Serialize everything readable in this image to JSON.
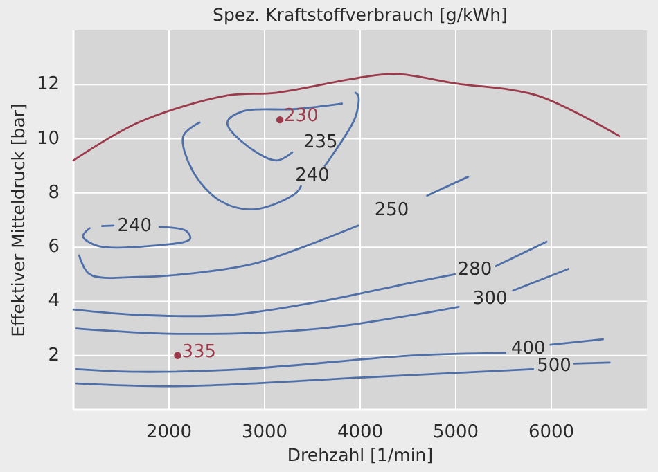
{
  "chart_data": {
    "type": "line",
    "title": "Spez. Kraftstoffverbrauch [g/kWh]",
    "xlabel": "Drehzahl [1/min]",
    "ylabel": "Effektiver Mitteldruck [bar]",
    "xlim": [
      1000,
      7000
    ],
    "xticks": [
      2000,
      3000,
      4000,
      5000,
      6000
    ],
    "ylim": [
      0,
      14
    ],
    "yticks": [
      2,
      4,
      6,
      8,
      10,
      12
    ],
    "grid": true,
    "series": [
      {
        "color": "#9b3a4a",
        "x": [
          1000,
          1680,
          2610,
          3120,
          3980,
          4370,
          4990,
          5850,
          6710
        ],
        "values": [
          9.2,
          10.6,
          11.6,
          11.7,
          12.25,
          12.4,
          12.05,
          11.6,
          10.1
        ]
      },
      {
        "name": "235",
        "color": "#4f6fa8",
        "x": [
          3810,
          3330,
          2760,
          2610,
          2760,
          3120,
          3290
        ],
        "values": [
          11.3,
          11.1,
          11.0,
          10.6,
          9.9,
          9.2,
          9.5
        ]
      },
      {
        "name": "240",
        "color": "#4f6fa8",
        "x": [
          3950,
          3980,
          3950,
          3690,
          3630,
          3500,
          3380,
          3330,
          2900,
          2540,
          2250,
          2150,
          2320,
          2000,
          1500,
          1300,
          1420,
          1640,
          1900,
          2180,
          2220,
          1820,
          1250,
          1100,
          1170
        ],
        "values": [
          11.7,
          11.6,
          10.8,
          9.3,
          9.0,
          null,
          8.25,
          8.0,
          7.4,
          7.7,
          8.8,
          10.1,
          10.6,
          null,
          null,
          6.78,
          6.8,
          null,
          6.75,
          6.6,
          6.3,
          6.05,
          6.05,
          6.4,
          6.7
        ]
      },
      {
        "name": "250",
        "color": "#4f6fa8",
        "x": [
          1060,
          1170,
          1680,
          2400,
          2900,
          3400,
          3980,
          4330,
          4700,
          5130
        ],
        "values": [
          5.7,
          5.0,
          4.9,
          5.1,
          5.4,
          6.0,
          6.8,
          null,
          7.9,
          8.6
        ]
      },
      {
        "name": "280",
        "color": "#4f6fa8",
        "x": [
          1000,
          1680,
          2640,
          3590,
          4550,
          4990,
          5200,
          5420,
          5950
        ],
        "values": [
          3.7,
          3.5,
          3.5,
          4.0,
          4.7,
          5.0,
          null,
          5.3,
          6.2
        ]
      },
      {
        "name": "300",
        "color": "#4f6fa8",
        "x": [
          1030,
          2150,
          3590,
          5030,
          5360,
          5600,
          6180
        ],
        "values": [
          3.0,
          2.8,
          3.0,
          3.8,
          null,
          4.4,
          5.2
        ]
      },
      {
        "name": "400",
        "color": "#4f6fa8",
        "x": [
          1030,
          1680,
          2780,
          4550,
          5520,
          5760,
          5990,
          6540
        ],
        "values": [
          1.5,
          1.4,
          1.5,
          2.0,
          2.1,
          null,
          2.4,
          2.6
        ]
      },
      {
        "name": "500",
        "color": "#4f6fa8",
        "x": [
          1030,
          2150,
          4080,
          5810,
          6030,
          6240,
          6610
        ],
        "values": [
          0.97,
          0.87,
          1.2,
          1.5,
          null,
          1.7,
          1.74
        ]
      },
      {
        "type": "scatter",
        "name": "230",
        "color": "#9b3a4a",
        "marker": "circle",
        "x": [
          3160
        ],
        "values": [
          10.7
        ]
      },
      {
        "type": "scatter",
        "name": "335",
        "color": "#9b3a4a",
        "marker": "circle",
        "x": [
          2090
        ],
        "values": [
          2.0
        ]
      }
    ]
  }
}
